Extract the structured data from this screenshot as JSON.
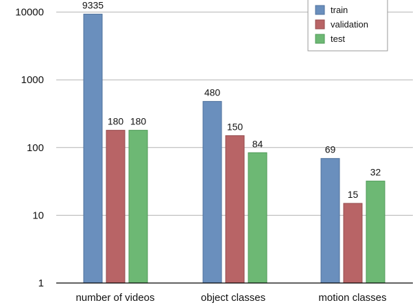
{
  "chart_data": {
    "type": "bar",
    "y_scale": "log",
    "ylim": [
      1,
      10000
    ],
    "y_ticks": [
      1,
      10,
      100,
      1000,
      10000
    ],
    "y_tick_labels": [
      "1",
      "10",
      "100",
      "1000",
      "10000"
    ],
    "categories": [
      "number of videos",
      "object classes",
      "motion classes"
    ],
    "series": [
      {
        "name": "train",
        "color": "#6a8fbd",
        "values": [
          9335,
          480,
          69
        ]
      },
      {
        "name": "validation",
        "color": "#b86466",
        "values": [
          180,
          150,
          15
        ]
      },
      {
        "name": "test",
        "color": "#6db874",
        "values": [
          180,
          84,
          32
        ]
      }
    ],
    "legend_position": "top-right",
    "grid": true,
    "title": "",
    "xlabel": "",
    "ylabel": ""
  }
}
